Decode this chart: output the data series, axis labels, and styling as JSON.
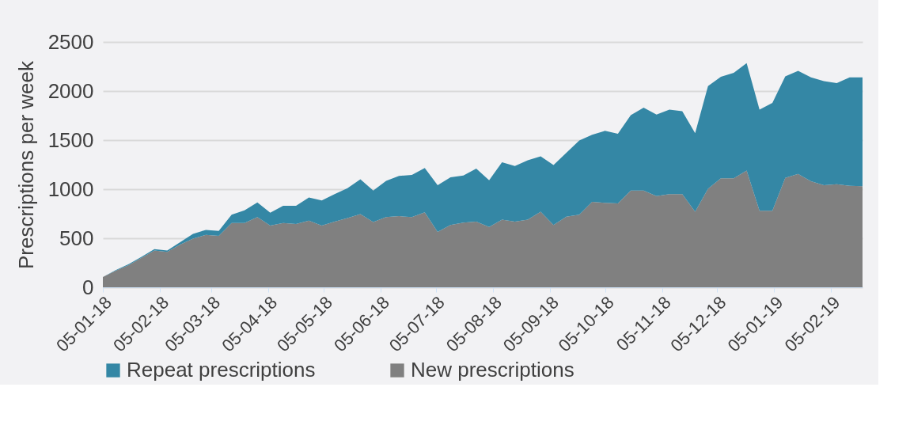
{
  "chart_data": {
    "type": "area",
    "stacked": true,
    "ylabel": "Prescriptions per week",
    "x": [
      "2018-01-05",
      "2018-01-12",
      "2018-01-19",
      "2018-01-26",
      "2018-02-02",
      "2018-02-09",
      "2018-02-16",
      "2018-02-23",
      "2018-03-02",
      "2018-03-09",
      "2018-03-16",
      "2018-03-23",
      "2018-03-30",
      "2018-04-06",
      "2018-04-13",
      "2018-04-20",
      "2018-04-27",
      "2018-05-04",
      "2018-05-11",
      "2018-05-18",
      "2018-05-25",
      "2018-06-01",
      "2018-06-08",
      "2018-06-15",
      "2018-06-22",
      "2018-06-29",
      "2018-07-06",
      "2018-07-13",
      "2018-07-20",
      "2018-07-27",
      "2018-08-03",
      "2018-08-10",
      "2018-08-17",
      "2018-08-24",
      "2018-08-31",
      "2018-09-07",
      "2018-09-14",
      "2018-09-21",
      "2018-09-28",
      "2018-10-05",
      "2018-10-12",
      "2018-10-19",
      "2018-10-26",
      "2018-11-02",
      "2018-11-09",
      "2018-11-16",
      "2018-11-23",
      "2018-11-30",
      "2018-12-07",
      "2018-12-14",
      "2018-12-21",
      "2018-12-28",
      "2019-01-04",
      "2019-01-11",
      "2019-01-18",
      "2019-01-25",
      "2019-02-01",
      "2019-02-08",
      "2019-02-15",
      "2019-02-22"
    ],
    "series": [
      {
        "name": "New prescriptions",
        "color": "#808080",
        "values": [
          105,
          170,
          225,
          300,
          375,
          360,
          435,
          495,
          535,
          525,
          655,
          655,
          715,
          630,
          655,
          645,
          680,
          630,
          670,
          705,
          745,
          665,
          715,
          725,
          715,
          765,
          565,
          635,
          660,
          670,
          615,
          690,
          670,
          690,
          770,
          635,
          720,
          740,
          870,
          860,
          855,
          985,
          985,
          930,
          950,
          950,
          770,
          1005,
          1110,
          1110,
          1190,
          780,
          780,
          1115,
          1155,
          1080,
          1040,
          1050,
          1035,
          1030
        ]
      },
      {
        "name": "Repeat prescriptions",
        "color": "#3487a5",
        "values": [
          0,
          5,
          10,
          10,
          15,
          15,
          25,
          50,
          50,
          50,
          85,
          130,
          150,
          130,
          175,
          185,
          235,
          255,
          280,
          305,
          355,
          320,
          370,
          410,
          430,
          450,
          475,
          485,
          480,
          540,
          475,
          585,
          565,
          605,
          565,
          610,
          650,
          755,
          685,
          735,
          710,
          770,
          845,
          830,
          860,
          845,
          800,
          1045,
          1035,
          1075,
          1095,
          1030,
          1100,
          1035,
          1050,
          1060,
          1060,
          1030,
          1105,
          1110
        ]
      }
    ],
    "xlim": [
      "2018-01-05",
      "2019-02-22"
    ],
    "xticks": [
      {
        "value": "2018-01-05",
        "label": "05-01-18"
      },
      {
        "value": "2018-02-05",
        "label": "05-02-18"
      },
      {
        "value": "2018-03-05",
        "label": "05-03-18"
      },
      {
        "value": "2018-04-05",
        "label": "05-04-18"
      },
      {
        "value": "2018-05-05",
        "label": "05-05-18"
      },
      {
        "value": "2018-06-05",
        "label": "05-06-18"
      },
      {
        "value": "2018-07-05",
        "label": "05-07-18"
      },
      {
        "value": "2018-08-05",
        "label": "05-08-18"
      },
      {
        "value": "2018-09-05",
        "label": "05-09-18"
      },
      {
        "value": "2018-10-05",
        "label": "05-10-18"
      },
      {
        "value": "2018-11-05",
        "label": "05-11-18"
      },
      {
        "value": "2018-12-05",
        "label": "05-12-18"
      },
      {
        "value": "2019-01-05",
        "label": "05-01-19"
      },
      {
        "value": "2019-02-05",
        "label": "05-02-19"
      }
    ],
    "ylim": [
      0,
      2500
    ],
    "yticks": [
      0,
      500,
      1000,
      1500,
      2000,
      2500
    ],
    "grid": "y",
    "legend": "bottom"
  }
}
